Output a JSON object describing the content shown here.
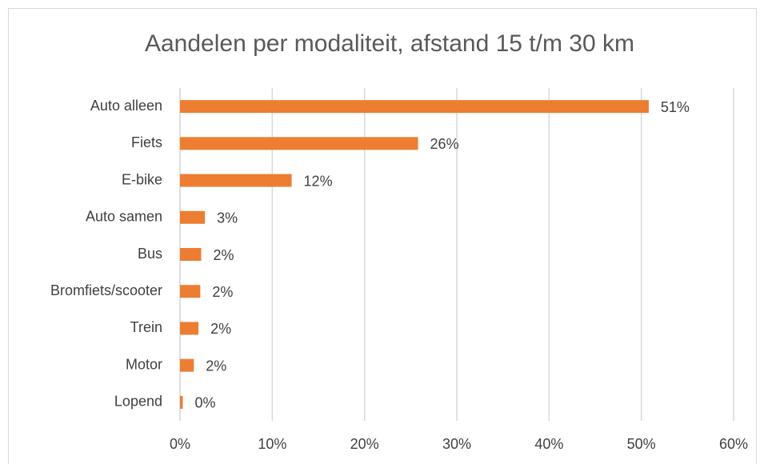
{
  "chart_data": {
    "type": "bar",
    "orientation": "horizontal",
    "title": "Aandelen per modaliteit, afstand 15 t/m 30 km",
    "categories": [
      "Auto alleen",
      "Fiets",
      "E-bike",
      "Auto samen",
      "Bus",
      "Bromfiets/scooter",
      "Trein",
      "Motor",
      "Lopend"
    ],
    "values": [
      50.8,
      25.8,
      12.1,
      2.7,
      2.3,
      2.2,
      2.0,
      1.5,
      0.3
    ],
    "value_labels": [
      "51%",
      "26%",
      "12%",
      "3%",
      "2%",
      "2%",
      "2%",
      "2%",
      "0%"
    ],
    "color": "#ed7d31",
    "xlim": [
      0,
      60
    ],
    "xticks": [
      {
        "value": 0,
        "label": "0%"
      },
      {
        "value": 10,
        "label": "10%"
      },
      {
        "value": 20,
        "label": "20%"
      },
      {
        "value": 30,
        "label": "30%"
      },
      {
        "value": 40,
        "label": "40%"
      },
      {
        "value": 50,
        "label": "50%"
      },
      {
        "value": 60,
        "label": "60%"
      }
    ],
    "grid": true
  }
}
